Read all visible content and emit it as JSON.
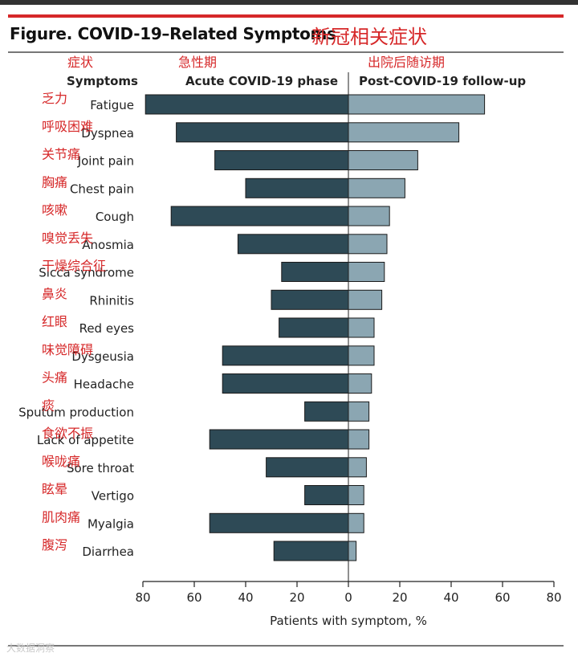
{
  "figure_title": "Figure. COVID-19–Related Symptoms",
  "figure_title_cn": "新冠相关症状",
  "watermark": "大数据洞察",
  "colors": {
    "acute_bar": "#2e4a56",
    "post_bar": "#8ba6b2",
    "accent_red": "#d62829",
    "axis": "#222222"
  },
  "chart_data": {
    "type": "bar",
    "orientation": "horizontal",
    "layout": "back-to-back",
    "categories": [
      "Fatigue",
      "Dyspnea",
      "Joint pain",
      "Chest pain",
      "Cough",
      "Anosmia",
      "Sicca syndrome",
      "Rhinitis",
      "Red eyes",
      "Dysgeusia",
      "Headache",
      "Sputum production",
      "Lack of appetite",
      "Sore throat",
      "Vertigo",
      "Myalgia",
      "Diarrhea"
    ],
    "categories_cn": [
      "乏力",
      "呼吸困难",
      "关节痛",
      "胸痛",
      "咳嗽",
      "嗅觉丢失",
      "干燥综合征",
      "鼻炎",
      "红眼",
      "味觉障碍",
      "头痛",
      "痰",
      "食欲不振",
      "喉咙痛",
      "眩晕",
      "肌肉痛",
      "腹泻"
    ],
    "series": [
      {
        "name": "Acute COVID-19 phase",
        "name_cn": "急性期",
        "values": [
          79,
          67,
          52,
          40,
          69,
          43,
          26,
          30,
          27,
          49,
          49,
          17,
          54,
          32,
          17,
          54,
          29
        ]
      },
      {
        "name": "Post-COVID-19 follow-up",
        "name_cn": "出院后随访期",
        "values": [
          53,
          43,
          27,
          22,
          16,
          15,
          14,
          13,
          10,
          10,
          9,
          8,
          8,
          7,
          6,
          6,
          3
        ]
      }
    ],
    "column_header": "Symptoms",
    "column_header_cn": "症状",
    "xlabel": "Patients with symptom, %",
    "xticks": [
      "80",
      "60",
      "40",
      "20",
      "0",
      "20",
      "40",
      "60",
      "80"
    ],
    "xlim": [
      -80,
      80
    ],
    "grid": false
  }
}
